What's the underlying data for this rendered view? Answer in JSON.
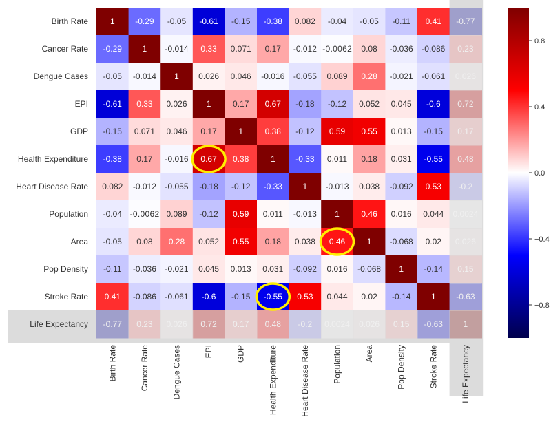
{
  "chart_data": {
    "type": "heatmap",
    "title": "",
    "variables": [
      "Birth Rate",
      "Cancer Rate",
      "Dengue Cases",
      "EPI",
      "GDP",
      "Health Expenditure",
      "Heart Disease Rate",
      "Population",
      "Area",
      "Pop Density",
      "Stroke Rate",
      "Life Expectancy"
    ],
    "matrix_labels": [
      [
        "1",
        "-0.29",
        "-0.05",
        "-0.61",
        "-0.15",
        "-0.38",
        "0.082",
        "-0.04",
        "-0.05",
        "-0.11",
        "0.41",
        "-0.77"
      ],
      [
        "-0.29",
        "1",
        "-0.014",
        "0.33",
        "0.071",
        "0.17",
        "-0.012",
        "-0.0062",
        "0.08",
        "-0.036",
        "-0.086",
        "0.23"
      ],
      [
        "-0.05",
        "-0.014",
        "1",
        "0.026",
        "0.046",
        "-0.016",
        "-0.055",
        "0.089",
        "0.28",
        "-0.021",
        "-0.061",
        "0.026"
      ],
      [
        "-0.61",
        "0.33",
        "0.026",
        "1",
        "0.17",
        "0.67",
        "-0.18",
        "-0.12",
        "0.052",
        "0.045",
        "-0.6",
        "0.72"
      ],
      [
        "-0.15",
        "0.071",
        "0.046",
        "0.17",
        "1",
        "0.38",
        "-0.12",
        "0.59",
        "0.55",
        "0.013",
        "-0.15",
        "0.17"
      ],
      [
        "-0.38",
        "0.17",
        "-0.016",
        "0.67",
        "0.38",
        "1",
        "-0.33",
        "0.011",
        "0.18",
        "0.031",
        "-0.55",
        "0.48"
      ],
      [
        "0.082",
        "-0.012",
        "-0.055",
        "-0.18",
        "-0.12",
        "-0.33",
        "1",
        "-0.013",
        "0.038",
        "-0.092",
        "0.53",
        "-0.2"
      ],
      [
        "-0.04",
        "-0.0062",
        "0.089",
        "-0.12",
        "0.59",
        "0.011",
        "-0.013",
        "1",
        "0.46",
        "0.016",
        "0.044",
        "0.0024"
      ],
      [
        "-0.05",
        "0.08",
        "0.28",
        "0.052",
        "0.55",
        "0.18",
        "0.038",
        "0.46",
        "1",
        "-0.068",
        "0.02",
        "0.026"
      ],
      [
        "-0.11",
        "-0.036",
        "-0.021",
        "0.045",
        "0.013",
        "0.031",
        "-0.092",
        "0.016",
        "-0.068",
        "1",
        "-0.14",
        "0.15"
      ],
      [
        "0.41",
        "-0.086",
        "-0.061",
        "-0.6",
        "-0.15",
        "-0.55",
        "0.53",
        "0.044",
        "0.02",
        "-0.14",
        "1",
        "-0.63"
      ],
      [
        "-0.77",
        "0.23",
        "0.026",
        "0.72",
        "0.17",
        "0.48",
        "-0.2",
        "0.0024",
        "0.026",
        "0.15",
        "-0.63",
        "1"
      ]
    ],
    "colormap": "seismic",
    "vmin": -1,
    "vmax": 1,
    "colorbar_ticks": [
      "0.8",
      "0.4",
      "0.0",
      "-0.4",
      "-0.8"
    ],
    "colorbar_tick_values": [
      0.8,
      0.4,
      0.0,
      -0.4,
      -0.8
    ],
    "dimmed_variable": "Life Expectancy",
    "highlighted_cells": [
      {
        "row": "Health Expenditure",
        "col": "EPI",
        "value": 0.67
      },
      {
        "row": "Area",
        "col": "Population",
        "value": 0.46
      },
      {
        "row": "Stroke Rate",
        "col": "Health Expenditure",
        "value": -0.55
      }
    ],
    "highlight_color": "#ffee00",
    "dim_color": "#dcdcdc"
  }
}
